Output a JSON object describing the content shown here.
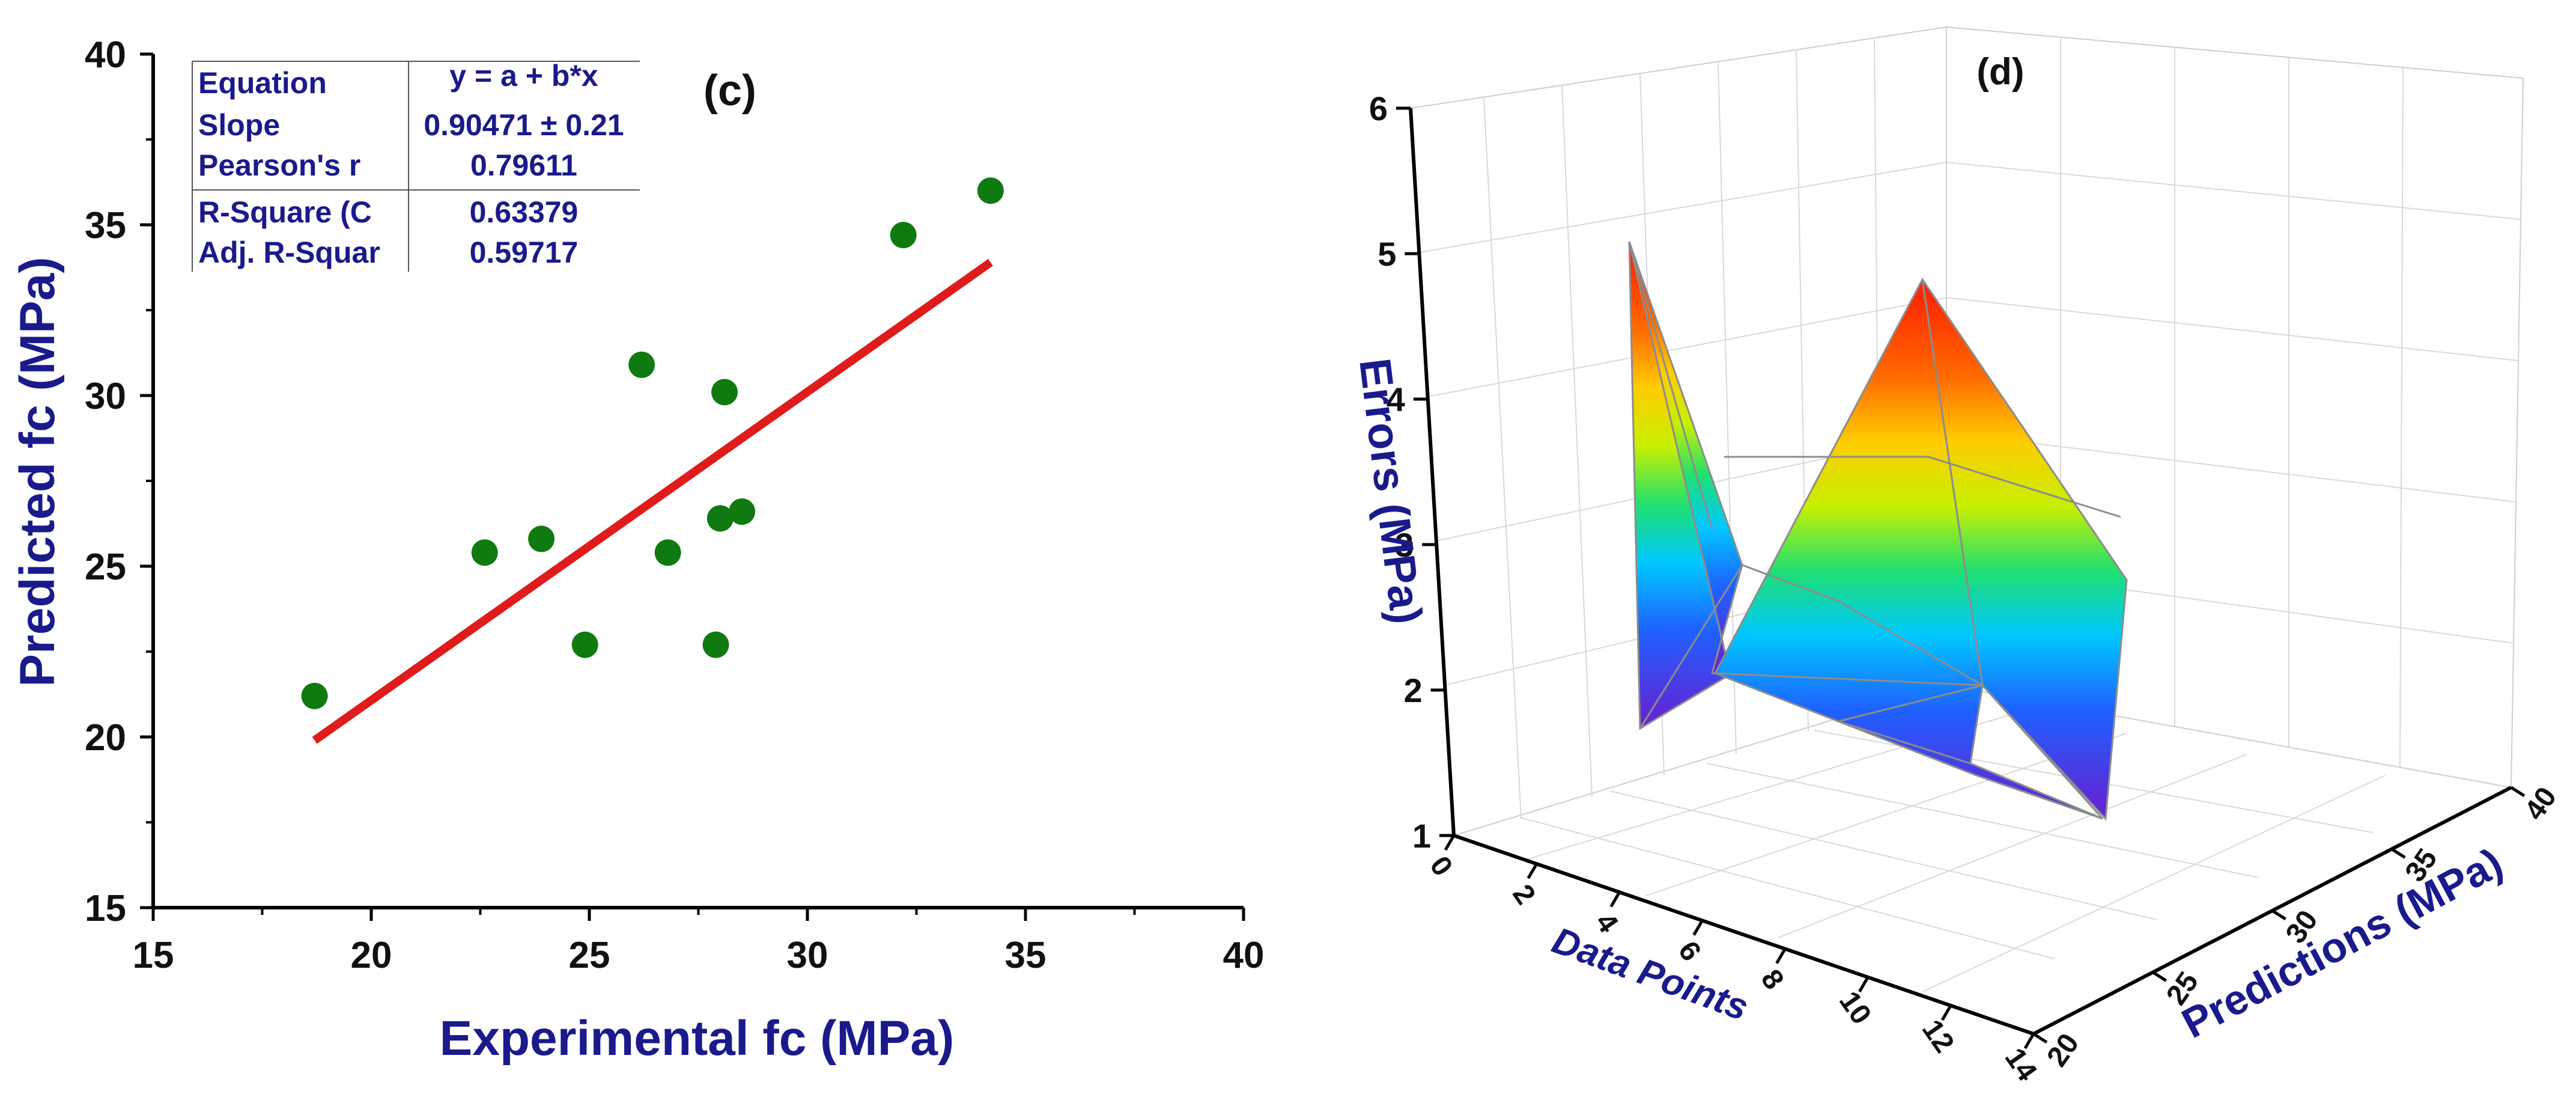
{
  "chart_data": [
    {
      "type": "scatter",
      "panel_label": "(c)",
      "xlabel": "Experimental fc (MPa)",
      "ylabel": "Predicted fc (MPa)",
      "xlim": [
        15,
        40
      ],
      "ylim": [
        15,
        40
      ],
      "xticks": [
        "15",
        "20",
        "25",
        "30",
        "35",
        "40"
      ],
      "yticks": [
        "15",
        "20",
        "25",
        "30",
        "35",
        "40"
      ],
      "points": [
        {
          "x": 18.7,
          "y": 21.2
        },
        {
          "x": 22.6,
          "y": 25.4
        },
        {
          "x": 23.9,
          "y": 25.8
        },
        {
          "x": 24.9,
          "y": 22.7
        },
        {
          "x": 26.2,
          "y": 30.9
        },
        {
          "x": 26.8,
          "y": 25.4
        },
        {
          "x": 27.9,
          "y": 22.7
        },
        {
          "x": 28.0,
          "y": 26.4
        },
        {
          "x": 28.5,
          "y": 26.6
        },
        {
          "x": 28.1,
          "y": 30.1
        },
        {
          "x": 32.2,
          "y": 34.7
        },
        {
          "x": 34.2,
          "y": 36.0
        }
      ],
      "fit_line": {
        "x": [
          18.7,
          34.2
        ],
        "y": [
          19.9,
          33.9
        ],
        "color": "#e01b1b"
      },
      "marker_color": "#0f7a0f",
      "stats_table": [
        {
          "label": "Equation",
          "value": "y = a + b*x"
        },
        {
          "label": "Slope",
          "value": "0.90471 ± 0.21"
        },
        {
          "label": "Pearson's r",
          "value": "0.79611"
        },
        {
          "label": "R-Square (C",
          "value": "0.63379"
        },
        {
          "label": "Adj. R-Squar",
          "value": "0.59717"
        }
      ]
    },
    {
      "type": "surface3d",
      "panel_label": "(d)",
      "xlabel": "Data Points",
      "ylabel": "Predictions (MPa)",
      "zlabel": "Errors (MPa)",
      "xticks": [
        "0",
        "2",
        "4",
        "6",
        "8",
        "10",
        "12",
        "14"
      ],
      "yticks": [
        "20",
        "25",
        "30",
        "35",
        "40"
      ],
      "zticks": [
        "1",
        "2",
        "3",
        "4",
        "5",
        "6"
      ],
      "xlim": [
        0,
        14
      ],
      "ylim": [
        20,
        40
      ],
      "zlim": [
        1,
        6
      ],
      "peaks": [
        {
          "label": "left peak",
          "error": 5.1
        },
        {
          "label": "right peak",
          "error": 5.0
        }
      ],
      "colormap": [
        "#6a1fd0",
        "#1f60ff",
        "#00c8ff",
        "#20e070",
        "#c8f000",
        "#ffcc00",
        "#ff6a00",
        "#ff1a00"
      ]
    }
  ]
}
